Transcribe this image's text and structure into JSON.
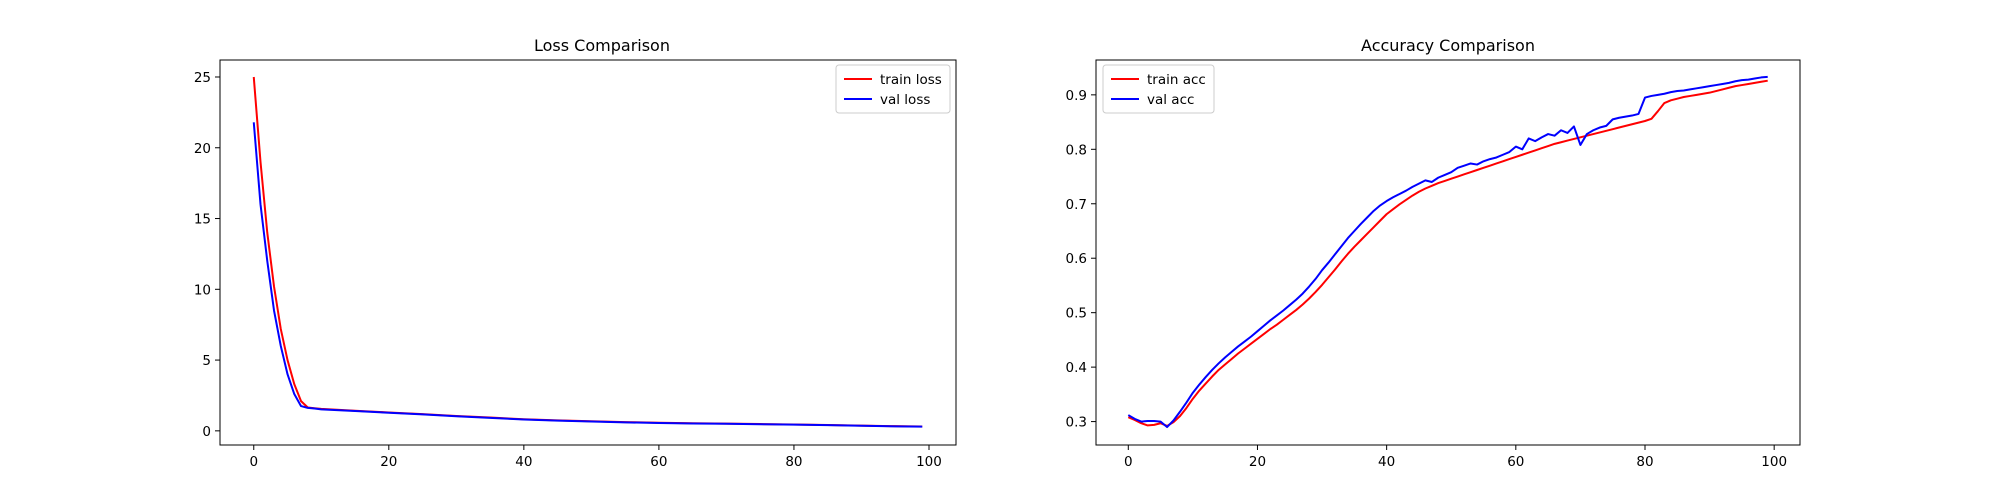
{
  "chart_data": [
    {
      "type": "line",
      "title": "Loss Comparison",
      "xlabel": "",
      "ylabel": "",
      "xlim": [
        -5,
        104
      ],
      "ylim": [
        -1,
        26.2
      ],
      "xticks": [
        0,
        20,
        40,
        60,
        80,
        100
      ],
      "yticks": [
        0,
        5,
        10,
        15,
        20,
        25
      ],
      "grid": false,
      "legend_position": "upper right",
      "series": [
        {
          "name": "train loss",
          "color": "#ff0000",
          "x": [
            0,
            1,
            2,
            3,
            4,
            5,
            6,
            7,
            8,
            9,
            10,
            15,
            20,
            25,
            30,
            35,
            40,
            45,
            50,
            55,
            60,
            65,
            70,
            75,
            80,
            85,
            90,
            95,
            99
          ],
          "y": [
            25.0,
            19.0,
            14.0,
            10.2,
            7.2,
            5.0,
            3.3,
            2.1,
            1.65,
            1.6,
            1.55,
            1.42,
            1.3,
            1.18,
            1.05,
            0.94,
            0.82,
            0.74,
            0.68,
            0.62,
            0.57,
            0.54,
            0.51,
            0.48,
            0.45,
            0.41,
            0.37,
            0.33,
            0.31
          ]
        },
        {
          "name": "val loss",
          "color": "#0000ff",
          "x": [
            0,
            1,
            2,
            3,
            4,
            5,
            6,
            7,
            8,
            9,
            10,
            15,
            20,
            25,
            30,
            35,
            40,
            45,
            50,
            55,
            60,
            65,
            70,
            75,
            80,
            85,
            90,
            95,
            99
          ],
          "y": [
            21.8,
            16.0,
            12.0,
            8.5,
            6.0,
            4.0,
            2.6,
            1.75,
            1.62,
            1.58,
            1.52,
            1.4,
            1.28,
            1.16,
            1.03,
            0.92,
            0.8,
            0.72,
            0.66,
            0.6,
            0.55,
            0.52,
            0.5,
            0.47,
            0.44,
            0.4,
            0.36,
            0.32,
            0.3
          ]
        }
      ]
    },
    {
      "type": "line",
      "title": "Accuracy Comparison",
      "xlabel": "",
      "ylabel": "",
      "xlim": [
        -5,
        104
      ],
      "ylim": [
        0.257,
        0.964
      ],
      "xticks": [
        0,
        20,
        40,
        60,
        80,
        100
      ],
      "yticks": [
        0.3,
        0.4,
        0.5,
        0.6,
        0.7,
        0.8,
        0.9
      ],
      "grid": false,
      "legend_position": "upper left",
      "series": [
        {
          "name": "train acc",
          "color": "#ff0000",
          "x": [
            0,
            1,
            2,
            3,
            4,
            5,
            6,
            7,
            8,
            9,
            10,
            11,
            12,
            13,
            14,
            15,
            16,
            17,
            18,
            19,
            20,
            21,
            22,
            23,
            24,
            25,
            26,
            27,
            28,
            29,
            30,
            31,
            32,
            33,
            34,
            35,
            36,
            37,
            38,
            39,
            40,
            41,
            42,
            43,
            44,
            45,
            46,
            47,
            48,
            49,
            50,
            51,
            52,
            53,
            54,
            55,
            56,
            57,
            58,
            59,
            60,
            61,
            62,
            63,
            64,
            65,
            66,
            67,
            68,
            69,
            70,
            71,
            72,
            73,
            74,
            75,
            76,
            77,
            78,
            79,
            80,
            81,
            82,
            83,
            84,
            85,
            86,
            87,
            88,
            89,
            90,
            91,
            92,
            93,
            94,
            95,
            96,
            97,
            98,
            99
          ],
          "y": [
            0.308,
            0.303,
            0.297,
            0.293,
            0.294,
            0.297,
            0.292,
            0.299,
            0.31,
            0.325,
            0.342,
            0.357,
            0.37,
            0.383,
            0.395,
            0.405,
            0.415,
            0.425,
            0.434,
            0.443,
            0.452,
            0.461,
            0.47,
            0.478,
            0.487,
            0.496,
            0.505,
            0.515,
            0.526,
            0.538,
            0.551,
            0.565,
            0.579,
            0.594,
            0.608,
            0.621,
            0.633,
            0.645,
            0.657,
            0.669,
            0.681,
            0.69,
            0.699,
            0.707,
            0.715,
            0.722,
            0.728,
            0.733,
            0.738,
            0.742,
            0.746,
            0.75,
            0.754,
            0.758,
            0.762,
            0.766,
            0.77,
            0.774,
            0.778,
            0.782,
            0.786,
            0.79,
            0.794,
            0.798,
            0.802,
            0.806,
            0.81,
            0.813,
            0.816,
            0.819,
            0.822,
            0.825,
            0.828,
            0.831,
            0.834,
            0.837,
            0.84,
            0.843,
            0.846,
            0.849,
            0.852,
            0.856,
            0.87,
            0.885,
            0.89,
            0.893,
            0.896,
            0.898,
            0.9,
            0.902,
            0.904,
            0.907,
            0.91,
            0.913,
            0.916,
            0.918,
            0.92,
            0.922,
            0.924,
            0.926
          ]
        },
        {
          "name": "val acc",
          "color": "#0000ff",
          "x": [
            0,
            1,
            2,
            3,
            4,
            5,
            6,
            7,
            8,
            9,
            10,
            11,
            12,
            13,
            14,
            15,
            16,
            17,
            18,
            19,
            20,
            21,
            22,
            23,
            24,
            25,
            26,
            27,
            28,
            29,
            30,
            31,
            32,
            33,
            34,
            35,
            36,
            37,
            38,
            39,
            40,
            41,
            42,
            43,
            44,
            45,
            46,
            47,
            48,
            49,
            50,
            51,
            52,
            53,
            54,
            55,
            56,
            57,
            58,
            59,
            60,
            61,
            62,
            63,
            64,
            65,
            66,
            67,
            68,
            69,
            70,
            71,
            72,
            73,
            74,
            75,
            76,
            77,
            78,
            79,
            80,
            81,
            82,
            83,
            84,
            85,
            86,
            87,
            88,
            89,
            90,
            91,
            92,
            93,
            94,
            95,
            96,
            97,
            98,
            99
          ],
          "y": [
            0.312,
            0.305,
            0.3,
            0.301,
            0.301,
            0.3,
            0.29,
            0.302,
            0.318,
            0.335,
            0.353,
            0.368,
            0.382,
            0.395,
            0.407,
            0.418,
            0.428,
            0.438,
            0.447,
            0.456,
            0.466,
            0.476,
            0.486,
            0.495,
            0.504,
            0.514,
            0.524,
            0.535,
            0.548,
            0.562,
            0.578,
            0.592,
            0.607,
            0.622,
            0.637,
            0.65,
            0.663,
            0.675,
            0.687,
            0.697,
            0.705,
            0.712,
            0.718,
            0.724,
            0.731,
            0.737,
            0.743,
            0.74,
            0.748,
            0.753,
            0.758,
            0.766,
            0.77,
            0.774,
            0.772,
            0.778,
            0.782,
            0.785,
            0.79,
            0.795,
            0.805,
            0.8,
            0.82,
            0.815,
            0.822,
            0.828,
            0.825,
            0.835,
            0.83,
            0.842,
            0.808,
            0.828,
            0.835,
            0.84,
            0.843,
            0.855,
            0.858,
            0.86,
            0.862,
            0.865,
            0.895,
            0.898,
            0.9,
            0.902,
            0.905,
            0.907,
            0.908,
            0.91,
            0.912,
            0.914,
            0.916,
            0.918,
            0.92,
            0.922,
            0.925,
            0.927,
            0.928,
            0.93,
            0.932,
            0.933
          ]
        }
      ]
    }
  ]
}
